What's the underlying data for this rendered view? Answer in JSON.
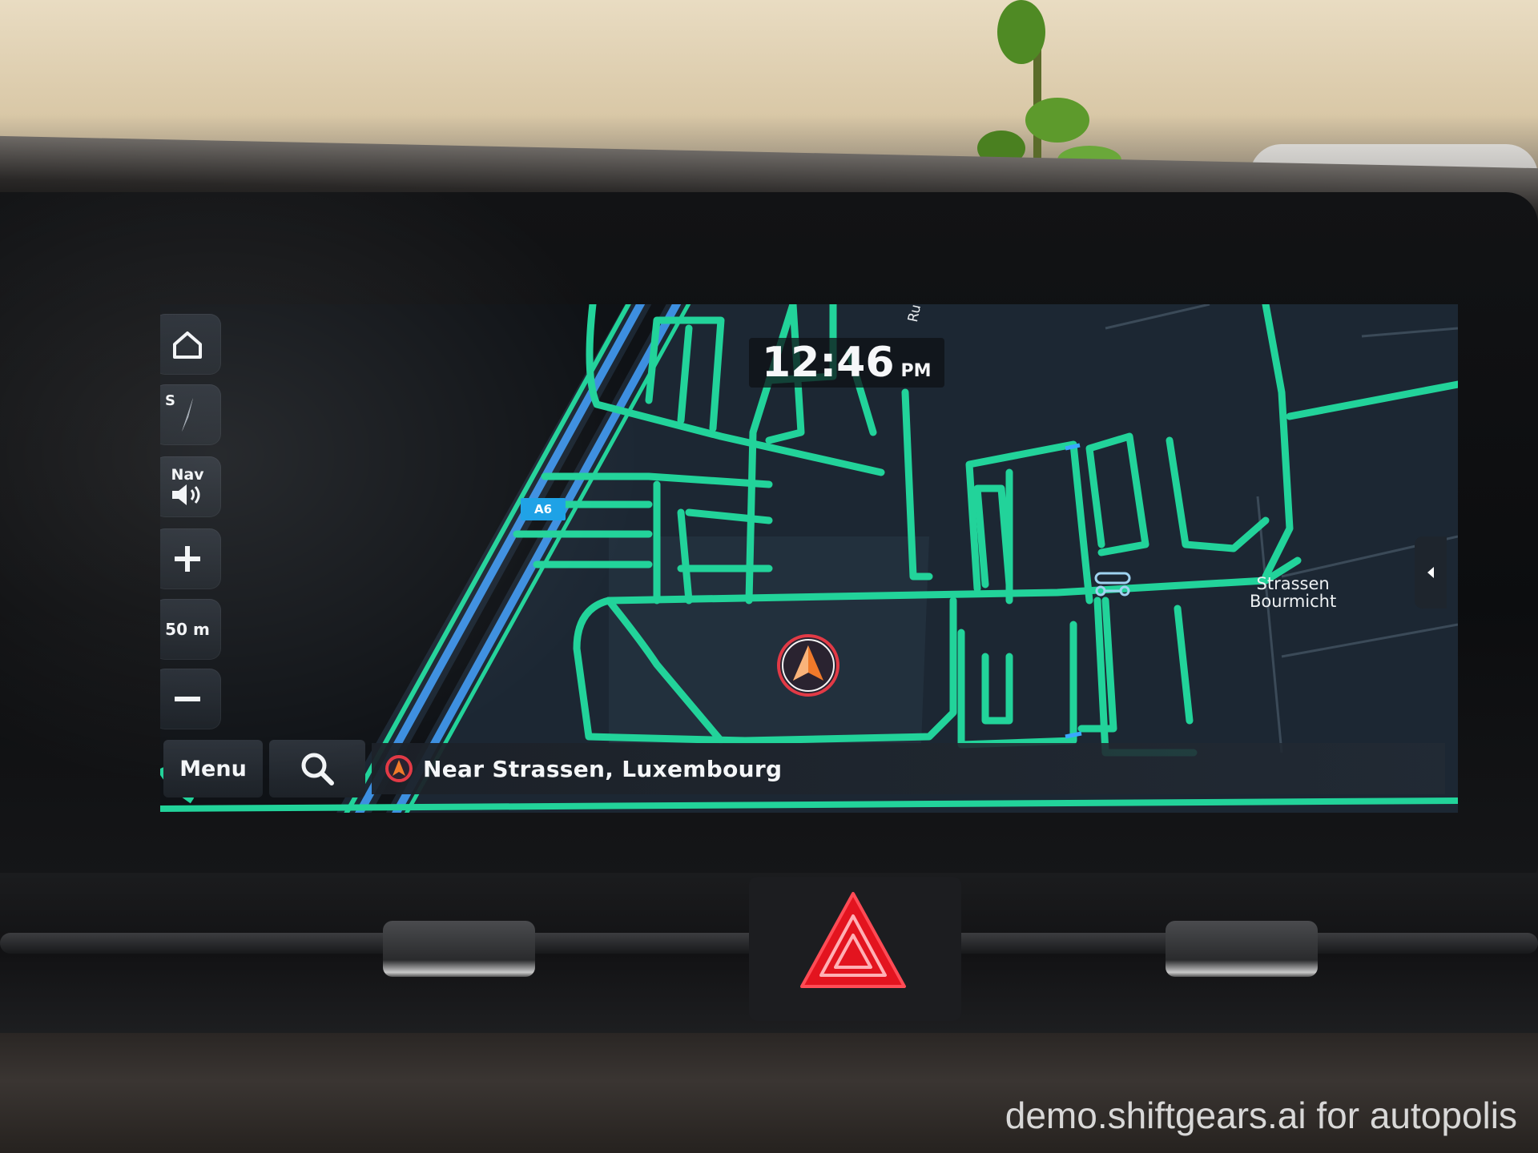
{
  "screen": {
    "clock": {
      "time": "12:46",
      "ampm": "PM"
    },
    "controls": {
      "home": {
        "icon": "home-icon"
      },
      "compass": {
        "letter": "S",
        "icon": "compass-needle-icon"
      },
      "nav_volume": {
        "label": "Nav",
        "icon": "speaker-icon"
      },
      "zoom_in": {
        "icon": "plus-icon"
      },
      "scale": {
        "label": "50 m"
      },
      "zoom_out": {
        "icon": "minus-icon"
      }
    },
    "bottom_bar": {
      "menu_label": "Menu",
      "search_icon": "search-icon",
      "location_text": "Near Strassen, Luxembourg"
    },
    "map": {
      "street_label": "Rue du Puits",
      "highway_shield": "A6",
      "place_label_line1": "Strassen",
      "place_label_line2": "Bourmicht",
      "road_color": "#22d39a",
      "background_color": "#1c2733",
      "highway_color": "#3d8fe0"
    }
  },
  "watermark": "demo.shiftgears.ai for autopolis"
}
